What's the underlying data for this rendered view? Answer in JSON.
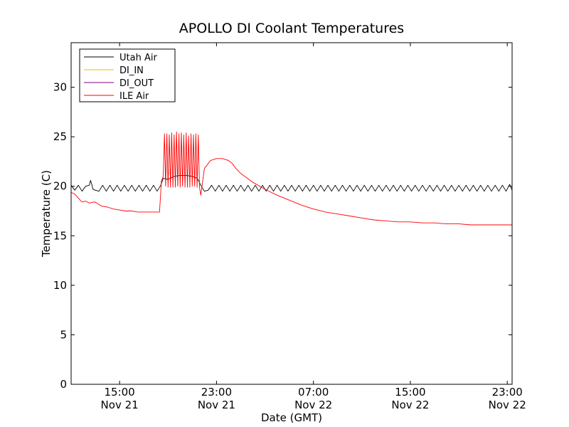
{
  "chart_data": {
    "type": "line",
    "title": "APOLLO DI Coolant Temperatures",
    "xlabel": "Date (GMT)",
    "ylabel": "Temperature (C)",
    "x_unit": "hours since Nov 21 00:00 GMT",
    "xlim": [
      11.0,
      47.4
    ],
    "ylim": [
      0,
      34.5
    ],
    "grid": false,
    "legend_position": "top-left",
    "yticks": [
      0,
      5,
      10,
      15,
      20,
      25,
      30
    ],
    "xticks": [
      {
        "x": 15,
        "time": "15:00",
        "date": "Nov 21"
      },
      {
        "x": 23,
        "time": "23:00",
        "date": "Nov 21"
      },
      {
        "x": 31,
        "time": "07:00",
        "date": "Nov 22"
      },
      {
        "x": 39,
        "time": "15:00",
        "date": "Nov 22"
      },
      {
        "x": 47,
        "time": "23:00",
        "date": "Nov 22"
      }
    ],
    "series": [
      {
        "name": "Utah Air",
        "color": "#000000",
        "x": [
          11.0,
          11.3,
          11.6,
          11.9,
          12.2,
          12.5,
          12.6,
          12.7,
          12.8,
          13.0,
          13.3,
          13.6,
          13.9,
          14.2,
          14.5,
          14.8,
          15.1,
          15.4,
          15.7,
          16.0,
          16.3,
          16.6,
          16.9,
          17.2,
          17.5,
          17.8,
          18.1,
          18.4,
          18.6,
          19.0,
          19.5,
          20.0,
          20.5,
          21.0,
          21.4,
          21.5,
          21.7,
          22.0,
          22.3,
          22.6,
          22.9,
          23.2,
          23.5,
          23.8,
          24.1,
          24.4,
          24.7,
          25.0,
          25.3,
          25.6,
          25.9,
          26.2,
          26.5,
          26.8,
          27.1,
          27.4,
          27.7,
          28.0,
          28.3,
          28.6,
          28.9,
          29.2,
          29.5,
          29.8,
          30.1,
          30.4,
          30.7,
          31.0,
          31.3,
          31.6,
          31.9,
          32.2,
          32.5,
          32.8,
          33.1,
          33.4,
          33.7,
          34.0,
          34.3,
          34.6,
          34.9,
          35.2,
          35.5,
          35.8,
          36.1,
          36.4,
          36.7,
          37.0,
          37.3,
          37.6,
          37.9,
          38.2,
          38.5,
          38.8,
          39.1,
          39.4,
          39.7,
          40.0,
          40.3,
          40.6,
          40.9,
          41.2,
          41.5,
          41.8,
          42.1,
          42.4,
          42.7,
          43.0,
          43.3,
          43.6,
          43.9,
          44.2,
          44.5,
          44.8,
          45.1,
          45.4,
          45.7,
          46.0,
          46.3,
          46.6,
          46.9,
          47.2,
          47.4
        ],
        "y": [
          20.1,
          19.6,
          20.1,
          19.5,
          20.0,
          20.1,
          20.6,
          20.2,
          19.7,
          19.6,
          19.5,
          20.1,
          19.5,
          20.1,
          19.5,
          20.1,
          19.5,
          20.1,
          19.5,
          20.1,
          19.5,
          20.1,
          19.5,
          20.1,
          19.5,
          20.1,
          19.5,
          20.1,
          20.8,
          20.7,
          21.0,
          21.1,
          21.1,
          21.0,
          20.8,
          20.6,
          20.1,
          19.5,
          19.6,
          20.1,
          19.5,
          20.1,
          19.5,
          20.1,
          19.5,
          20.1,
          19.5,
          20.1,
          19.5,
          20.1,
          19.5,
          20.1,
          19.5,
          20.1,
          19.5,
          20.1,
          19.5,
          20.1,
          19.5,
          20.1,
          19.5,
          20.1,
          19.5,
          20.1,
          19.5,
          20.1,
          19.5,
          20.1,
          19.5,
          20.1,
          19.5,
          20.1,
          19.5,
          20.1,
          19.5,
          20.1,
          19.5,
          20.1,
          19.5,
          20.1,
          19.5,
          20.1,
          19.5,
          20.1,
          19.5,
          20.1,
          19.5,
          20.1,
          19.5,
          20.1,
          19.5,
          20.1,
          19.5,
          20.1,
          19.5,
          20.1,
          19.5,
          20.1,
          19.5,
          20.1,
          19.5,
          20.1,
          19.5,
          20.1,
          19.5,
          20.1,
          19.5,
          20.1,
          19.5,
          20.1,
          19.5,
          20.1,
          19.5,
          20.1,
          19.5,
          20.1,
          19.5,
          20.1,
          19.5,
          20.1,
          19.5,
          20.2,
          19.6
        ]
      },
      {
        "name": "DI_IN",
        "color": "#ffb300",
        "x": [],
        "y": []
      },
      {
        "name": "DI_OUT",
        "color": "#800080",
        "x": [],
        "y": []
      },
      {
        "name": "ILE Air",
        "color": "#ff0000",
        "x": [
          11.0,
          11.3,
          11.6,
          11.9,
          12.2,
          12.5,
          12.8,
          13.0,
          13.5,
          14.0,
          14.5,
          15.0,
          15.5,
          16.0,
          16.5,
          17.0,
          17.5,
          18.0,
          18.3,
          18.45,
          18.6,
          18.7,
          18.8,
          18.9,
          19.0,
          19.1,
          19.2,
          19.3,
          19.4,
          19.5,
          19.6,
          19.7,
          19.8,
          19.9,
          20.0,
          20.1,
          20.2,
          20.3,
          20.4,
          20.5,
          20.6,
          20.7,
          20.8,
          20.9,
          21.0,
          21.1,
          21.2,
          21.3,
          21.4,
          21.5,
          21.6,
          21.7,
          22.0,
          22.5,
          23.0,
          23.5,
          24.0,
          24.3,
          24.6,
          25.0,
          26.0,
          27.0,
          28.0,
          29.0,
          30.0,
          31.0,
          32.0,
          33.0,
          34.0,
          35.0,
          36.0,
          37.0,
          38.0,
          39.0,
          40.0,
          41.0,
          42.0,
          43.0,
          44.0,
          45.0,
          46.0,
          47.0,
          47.4
        ],
        "y": [
          19.4,
          19.2,
          18.8,
          18.4,
          18.5,
          18.3,
          18.4,
          18.4,
          18.0,
          17.9,
          17.7,
          17.6,
          17.5,
          17.5,
          17.4,
          17.4,
          17.4,
          17.4,
          17.4,
          20.5,
          21.0,
          25.3,
          20.0,
          25.3,
          19.9,
          25.2,
          19.9,
          25.4,
          19.9,
          25.2,
          19.9,
          25.5,
          20.0,
          25.3,
          19.9,
          25.4,
          20.0,
          25.2,
          19.9,
          25.4,
          19.9,
          25.1,
          19.9,
          25.3,
          20.0,
          25.2,
          20.0,
          25.3,
          19.9,
          25.2,
          19.9,
          19.1,
          21.8,
          22.6,
          22.8,
          22.8,
          22.6,
          22.3,
          21.8,
          21.3,
          20.4,
          19.7,
          19.1,
          18.6,
          18.1,
          17.7,
          17.4,
          17.2,
          17.0,
          16.8,
          16.6,
          16.5,
          16.4,
          16.4,
          16.3,
          16.3,
          16.2,
          16.2,
          16.1,
          16.1,
          16.1,
          16.1,
          16.1
        ]
      }
    ]
  }
}
